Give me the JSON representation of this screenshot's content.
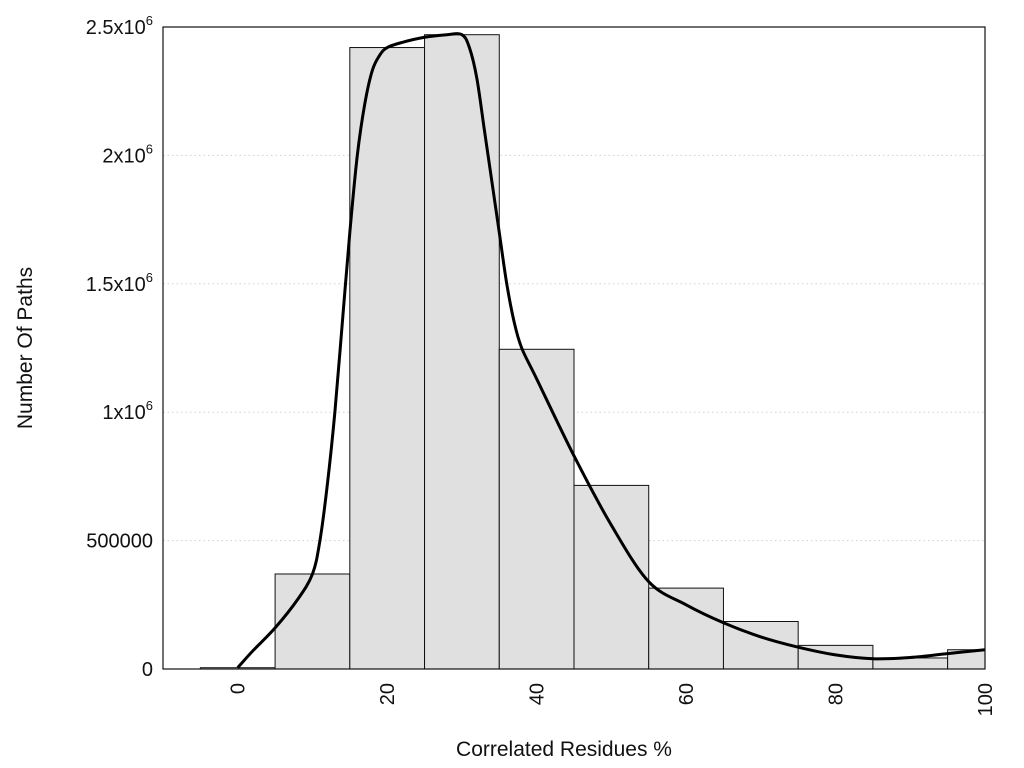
{
  "chart_data": {
    "type": "bar",
    "xlabel": "Correlated Residues %",
    "ylabel": "Number Of Paths",
    "xlim": [
      -10,
      100
    ],
    "ylim": [
      0,
      2500000
    ],
    "x_ticks": [
      0,
      20,
      40,
      60,
      80,
      100
    ],
    "y_ticks": [
      {
        "value": 0,
        "mantissa": "0",
        "sup": ""
      },
      {
        "value": 500000,
        "mantissa": "500000",
        "sup": ""
      },
      {
        "value": 1000000,
        "mantissa": "1x10",
        "sup": "6"
      },
      {
        "value": 1500000,
        "mantissa": "1.5x10",
        "sup": "6"
      },
      {
        "value": 2000000,
        "mantissa": "2x10",
        "sup": "6"
      },
      {
        "value": 2500000,
        "mantissa": "2.5x10",
        "sup": "6"
      }
    ],
    "bin_width": 10,
    "bins": [
      {
        "x": 0,
        "value": 5000
      },
      {
        "x": 10,
        "value": 370000
      },
      {
        "x": 20,
        "value": 2420000
      },
      {
        "x": 30,
        "value": 2470000
      },
      {
        "x": 40,
        "value": 1245000
      },
      {
        "x": 50,
        "value": 715000
      },
      {
        "x": 60,
        "value": 315000
      },
      {
        "x": 70,
        "value": 185000
      },
      {
        "x": 80,
        "value": 92000
      },
      {
        "x": 90,
        "value": 43000
      },
      {
        "x": 100,
        "value": 75000
      }
    ],
    "smooth_curve": {
      "x": [
        0,
        2,
        5,
        8,
        10,
        11,
        12,
        13,
        14,
        15,
        16,
        17,
        18,
        19,
        20,
        22,
        25,
        28,
        30,
        31,
        32,
        33,
        34,
        35,
        36,
        37,
        38,
        40,
        45,
        50,
        55,
        60,
        65,
        70,
        75,
        80,
        85,
        90,
        95,
        100
      ],
      "y": [
        5000,
        70000,
        160000,
        270000,
        370000,
        500000,
        720000,
        1000000,
        1350000,
        1700000,
        2000000,
        2200000,
        2330000,
        2390000,
        2420000,
        2440000,
        2460000,
        2470000,
        2470000,
        2420000,
        2300000,
        2100000,
        1900000,
        1700000,
        1500000,
        1350000,
        1250000,
        1130000,
        830000,
        560000,
        340000,
        250000,
        180000,
        125000,
        85000,
        55000,
        40000,
        45000,
        60000,
        75000
      ]
    },
    "grid": "horizontal dotted",
    "legend": "none",
    "colors": {
      "bar_fill": "#e0e0e0",
      "bar_stroke": "#111111",
      "curve": "#000000",
      "grid": "#cfcfcf"
    }
  }
}
